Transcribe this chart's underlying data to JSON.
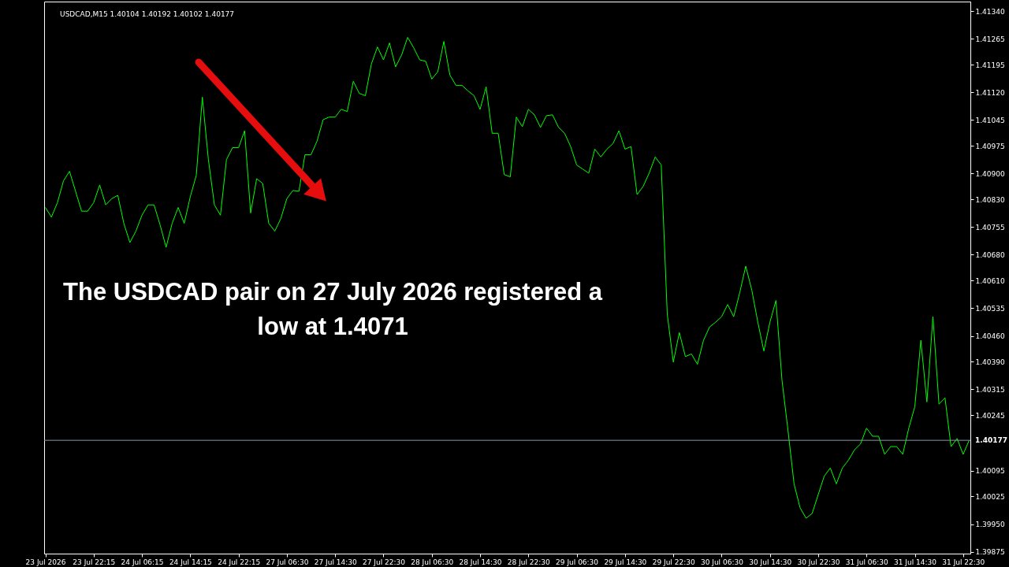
{
  "chart_data": {
    "type": "line",
    "title": "USDCAD,M15 1.40104 1.40192 1.40102 1.40177",
    "annotations": [
      "The USDCAD pair on 27 July 2026 registered a low at 1.4071"
    ],
    "categories": [
      "23 Jul 2026",
      null,
      null,
      null,
      null,
      null,
      null,
      null,
      "23 Jul 22:15",
      null,
      null,
      null,
      null,
      null,
      null,
      null,
      "24 Jul 06:15",
      null,
      null,
      null,
      null,
      null,
      null,
      null,
      "24 Jul 14:15",
      null,
      null,
      null,
      null,
      null,
      null,
      null,
      "24 Jul 22:15",
      null,
      null,
      null,
      null,
      null,
      null,
      null,
      "27 Jul 06:30",
      null,
      null,
      null,
      null,
      null,
      null,
      null,
      "27 Jul 14:30",
      null,
      null,
      null,
      null,
      null,
      null,
      null,
      "27 Jul 22:30",
      null,
      null,
      null,
      null,
      null,
      null,
      null,
      "28 Jul 06:30",
      null,
      null,
      null,
      null,
      null,
      null,
      null,
      "28 Jul 14:30",
      null,
      null,
      null,
      null,
      null,
      null,
      null,
      "28 Jul 22:30",
      null,
      null,
      null,
      null,
      null,
      null,
      null,
      "29 Jul 06:30",
      null,
      null,
      null,
      null,
      null,
      null,
      null,
      "29 Jul 14:30",
      null,
      null,
      null,
      null,
      null,
      null,
      null,
      "29 Jul 22:30",
      null,
      null,
      null,
      null,
      null,
      null,
      null,
      "30 Jul 06:30",
      null,
      null,
      null,
      null,
      null,
      null,
      null,
      "30 Jul 14:30",
      null,
      null,
      null,
      null,
      null,
      null,
      null,
      "30 Jul 22:30",
      null,
      null,
      null,
      null,
      null,
      null,
      null,
      "31 Jul 06:30",
      null,
      null,
      null,
      null,
      null,
      null,
      null,
      "31 Jul 14:30",
      null,
      null,
      null,
      null,
      null,
      null,
      null,
      "31 Jul 22:30",
      null
    ],
    "series": [
      {
        "color": "#00ff00",
        "values": [
          1.40808,
          1.40782,
          1.40821,
          1.4088,
          1.40906,
          1.40852,
          1.40798,
          1.40798,
          1.40821,
          1.40869,
          1.40815,
          1.40832,
          1.40841,
          1.40765,
          1.40713,
          1.40744,
          1.40787,
          1.40815,
          1.40815,
          1.40761,
          1.407,
          1.40765,
          1.40808,
          1.40765,
          1.40837,
          1.40895,
          1.41107,
          1.40938,
          1.40815,
          1.40787,
          1.40938,
          1.4097,
          1.4097,
          1.41016,
          1.40793,
          1.40886,
          1.40873,
          1.40765,
          1.40744,
          1.40778,
          1.40832,
          1.40854,
          1.40852,
          1.40951,
          1.40951,
          1.40988,
          1.41046,
          1.41053,
          1.41053,
          1.41074,
          1.41068,
          1.4115,
          1.41117,
          1.41111,
          1.41197,
          1.41243,
          1.41208,
          1.41254,
          1.41189,
          1.41221,
          1.41269,
          1.41241,
          1.41208,
          1.41204,
          1.41156,
          1.41176,
          1.41258,
          1.41167,
          1.41139,
          1.41139,
          1.41124,
          1.41111,
          1.41074,
          1.41135,
          1.41009,
          1.41009,
          1.40897,
          1.40891,
          1.41053,
          1.41027,
          1.41074,
          1.41059,
          1.41025,
          1.41057,
          1.41059,
          1.41025,
          1.41009,
          1.40973,
          1.40923,
          1.40912,
          1.40901,
          1.40966,
          1.40945,
          1.40966,
          1.40981,
          1.41016,
          1.40966,
          1.40973,
          1.40843,
          1.40865,
          1.40901,
          1.40945,
          1.40923,
          1.40519,
          1.40389,
          1.40469,
          1.40404,
          1.40411,
          1.40383,
          1.40448,
          1.40484,
          1.40497,
          1.40512,
          1.40545,
          1.40512,
          1.40577,
          1.40649,
          1.40584,
          1.40497,
          1.40419,
          1.40497,
          1.40556,
          1.4034,
          1.40203,
          1.40059,
          1.39994,
          1.39966,
          1.39979,
          1.4003,
          1.4008,
          1.40102,
          1.40059,
          1.40102,
          1.40123,
          1.40151,
          1.40167,
          1.4021,
          1.40188,
          1.40188,
          1.40139,
          1.4016,
          1.4016,
          1.40139,
          1.4021,
          1.40268,
          1.40448,
          1.40281,
          1.40512,
          1.40275,
          1.40292,
          1.4016,
          1.40182,
          1.40139,
          1.40177
        ]
      }
    ],
    "ylim": [
      1.3987,
      1.41366
    ],
    "yticks": [
      {
        "value": 1.39875,
        "label": "1.39875"
      },
      {
        "value": 1.3995,
        "label": "1.39950"
      },
      {
        "value": 1.40025,
        "label": "1.40025"
      },
      {
        "value": 1.40095,
        "label": "1.40095"
      },
      {
        "value": 1.40245,
        "label": "1.40245"
      },
      {
        "value": 1.40315,
        "label": "1.40315"
      },
      {
        "value": 1.4039,
        "label": "1.40390"
      },
      {
        "value": 1.4046,
        "label": "1.40460"
      },
      {
        "value": 1.40535,
        "label": "1.40535"
      },
      {
        "value": 1.4061,
        "label": "1.40610"
      },
      {
        "value": 1.4068,
        "label": "1.40680"
      },
      {
        "value": 1.40755,
        "label": "1.40755"
      },
      {
        "value": 1.4083,
        "label": "1.40830"
      },
      {
        "value": 1.409,
        "label": "1.40900"
      },
      {
        "value": 1.40975,
        "label": "1.40975"
      },
      {
        "value": 1.41045,
        "label": "1.41045"
      },
      {
        "value": 1.4112,
        "label": "1.41120"
      },
      {
        "value": 1.41195,
        "label": "1.41195"
      },
      {
        "value": 1.41265,
        "label": "1.41265"
      },
      {
        "value": 1.4134,
        "label": "1.41340"
      }
    ],
    "ref_lines": [
      {
        "axis": "y",
        "value": 1.40177,
        "label": "1.40177",
        "color": "#8a97a6"
      }
    ],
    "grid": false,
    "line_style": "solid",
    "marker": "none"
  }
}
